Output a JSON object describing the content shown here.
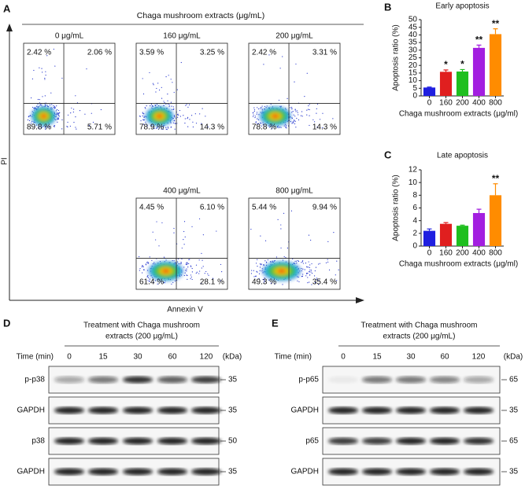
{
  "panel_labels": [
    "A",
    "B",
    "C",
    "D",
    "E"
  ],
  "flow": {
    "title": "Chaga mushroom extracts (μg/mL)",
    "y_label": "PI",
    "x_label": "Annexin V",
    "plots": [
      {
        "label": "0 μg/mL",
        "quadrants": [
          "2.42 %",
          "2.06 %",
          "89.8 %",
          "5.71 %"
        ]
      },
      {
        "label": "160 μg/mL",
        "quadrants": [
          "3.59 %",
          "3.25 %",
          "78.9 %",
          "14.3 %"
        ]
      },
      {
        "label": "200 μg/mL",
        "quadrants": [
          "2.42 %",
          "3.31 %",
          "78.8 %",
          "14.3 %"
        ]
      },
      {
        "label": "400 μg/mL",
        "quadrants": [
          "4.45 %",
          "6.10 %",
          "61.4 %",
          "28.1 %"
        ]
      },
      {
        "label": "800 μg/mL",
        "quadrants": [
          "5.44 %",
          "9.94 %",
          "49.3 %",
          "35.4 %"
        ]
      }
    ]
  },
  "chart_data": [
    {
      "type": "bar",
      "title": "Early apoptosis",
      "y_label": "Apoptosis ratio  (%)",
      "x_label": "Chaga mushroom extracts (μg/ml)",
      "categories": [
        "0",
        "160",
        "200",
        "400",
        "800"
      ],
      "values": [
        5.5,
        15.8,
        16,
        31.5,
        40.5
      ],
      "errors": [
        0.3,
        1.2,
        1.3,
        1.8,
        3.5
      ],
      "significance": [
        null,
        "*",
        "*",
        "**",
        "**"
      ],
      "colors": [
        "#1f1fe0",
        "#e01f1f",
        "#1fbf1f",
        "#a31fe0",
        "#ff8c00"
      ],
      "ylim": [
        0,
        50
      ],
      "yticks": [
        0,
        5,
        10,
        15,
        20,
        25,
        30,
        35,
        40,
        45,
        50
      ]
    },
    {
      "type": "bar",
      "title": "Late apoptosis",
      "y_label": "Apoptosis ratio  (%)",
      "x_label": "Chaga mushroom extracts (μg/ml)",
      "categories": [
        "0",
        "160",
        "200",
        "400",
        "800"
      ],
      "values": [
        2.4,
        3.5,
        3.2,
        5.2,
        8.0
      ],
      "errors": [
        0.3,
        0.2,
        0.1,
        0.6,
        1.8
      ],
      "significance": [
        null,
        null,
        null,
        null,
        "**"
      ],
      "colors": [
        "#1f1fe0",
        "#e01f1f",
        "#1fbf1f",
        "#a31fe0",
        "#ff8c00"
      ],
      "ylim": [
        0,
        12
      ],
      "yticks": [
        0,
        2,
        4,
        6,
        8,
        10,
        12
      ]
    }
  ],
  "blots": [
    {
      "title_lines": [
        "Treatment with Chaga mushroom",
        "extracts (200 μg/mL)"
      ],
      "time_label": "Time (min)",
      "unit": "(kDa)",
      "times": [
        "0",
        "15",
        "30",
        "60",
        "120"
      ],
      "rows": [
        {
          "label": "p-p38",
          "marker": "35",
          "intensity": [
            0.35,
            0.55,
            0.85,
            0.65,
            0.8
          ]
        },
        {
          "label": "GAPDH",
          "marker": "35",
          "intensity": [
            0.9,
            0.9,
            0.9,
            0.9,
            0.9
          ]
        },
        {
          "label": "p38",
          "marker": "50",
          "intensity": [
            0.9,
            0.9,
            0.9,
            0.9,
            0.9
          ]
        },
        {
          "label": "GAPDH",
          "marker": "35",
          "intensity": [
            0.9,
            0.9,
            0.9,
            0.9,
            0.9
          ]
        }
      ]
    },
    {
      "title_lines": [
        "Treatment with Chaga mushroom",
        "extracts (200 μg/mL)"
      ],
      "time_label": "Time (min)",
      "unit": "(kDa)",
      "times": [
        "0",
        "15",
        "30",
        "60",
        "120"
      ],
      "rows": [
        {
          "label": "p-p65",
          "marker": "65",
          "intensity": [
            0.05,
            0.55,
            0.55,
            0.5,
            0.35
          ]
        },
        {
          "label": "GAPDH",
          "marker": "35",
          "intensity": [
            0.9,
            0.9,
            0.9,
            0.9,
            0.9
          ]
        },
        {
          "label": "p65",
          "marker": "65",
          "intensity": [
            0.8,
            0.8,
            0.9,
            0.9,
            0.85
          ]
        },
        {
          "label": "GAPDH",
          "marker": "35",
          "intensity": [
            0.9,
            0.9,
            0.9,
            0.9,
            0.9
          ]
        }
      ]
    }
  ]
}
